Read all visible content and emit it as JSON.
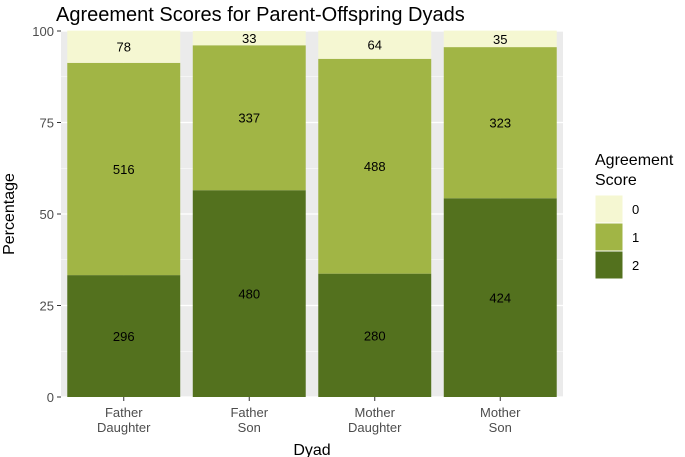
{
  "chart_data": {
    "type": "bar",
    "stacked": true,
    "title": "Agreement Scores for Parent-Offspring Dyads",
    "xlabel": "Dyad",
    "ylabel": "Percentage",
    "ylim": [
      0,
      100
    ],
    "yticks": [
      0,
      25,
      50,
      75,
      100
    ],
    "grid": true,
    "legend_position": "right",
    "legend_title": [
      "Agreement",
      "Score"
    ],
    "categories": [
      [
        "Father",
        "Daughter"
      ],
      [
        "Father",
        "Son"
      ],
      [
        "Mother",
        "Daughter"
      ],
      [
        "Mother",
        "Son"
      ]
    ],
    "series": [
      {
        "name": "2",
        "color": "#53711e",
        "counts": [
          296,
          480,
          280,
          424
        ],
        "values": [
          33.3,
          56.5,
          33.7,
          54.3
        ]
      },
      {
        "name": "1",
        "color": "#a1b545",
        "counts": [
          516,
          337,
          488,
          323
        ],
        "values": [
          58.0,
          39.6,
          58.7,
          41.3
        ]
      },
      {
        "name": "0",
        "color": "#f5f7d2",
        "counts": [
          78,
          33,
          64,
          35
        ],
        "values": [
          8.8,
          3.9,
          7.7,
          4.5
        ]
      }
    ],
    "legend_order": [
      "0",
      "1",
      "2"
    ]
  }
}
